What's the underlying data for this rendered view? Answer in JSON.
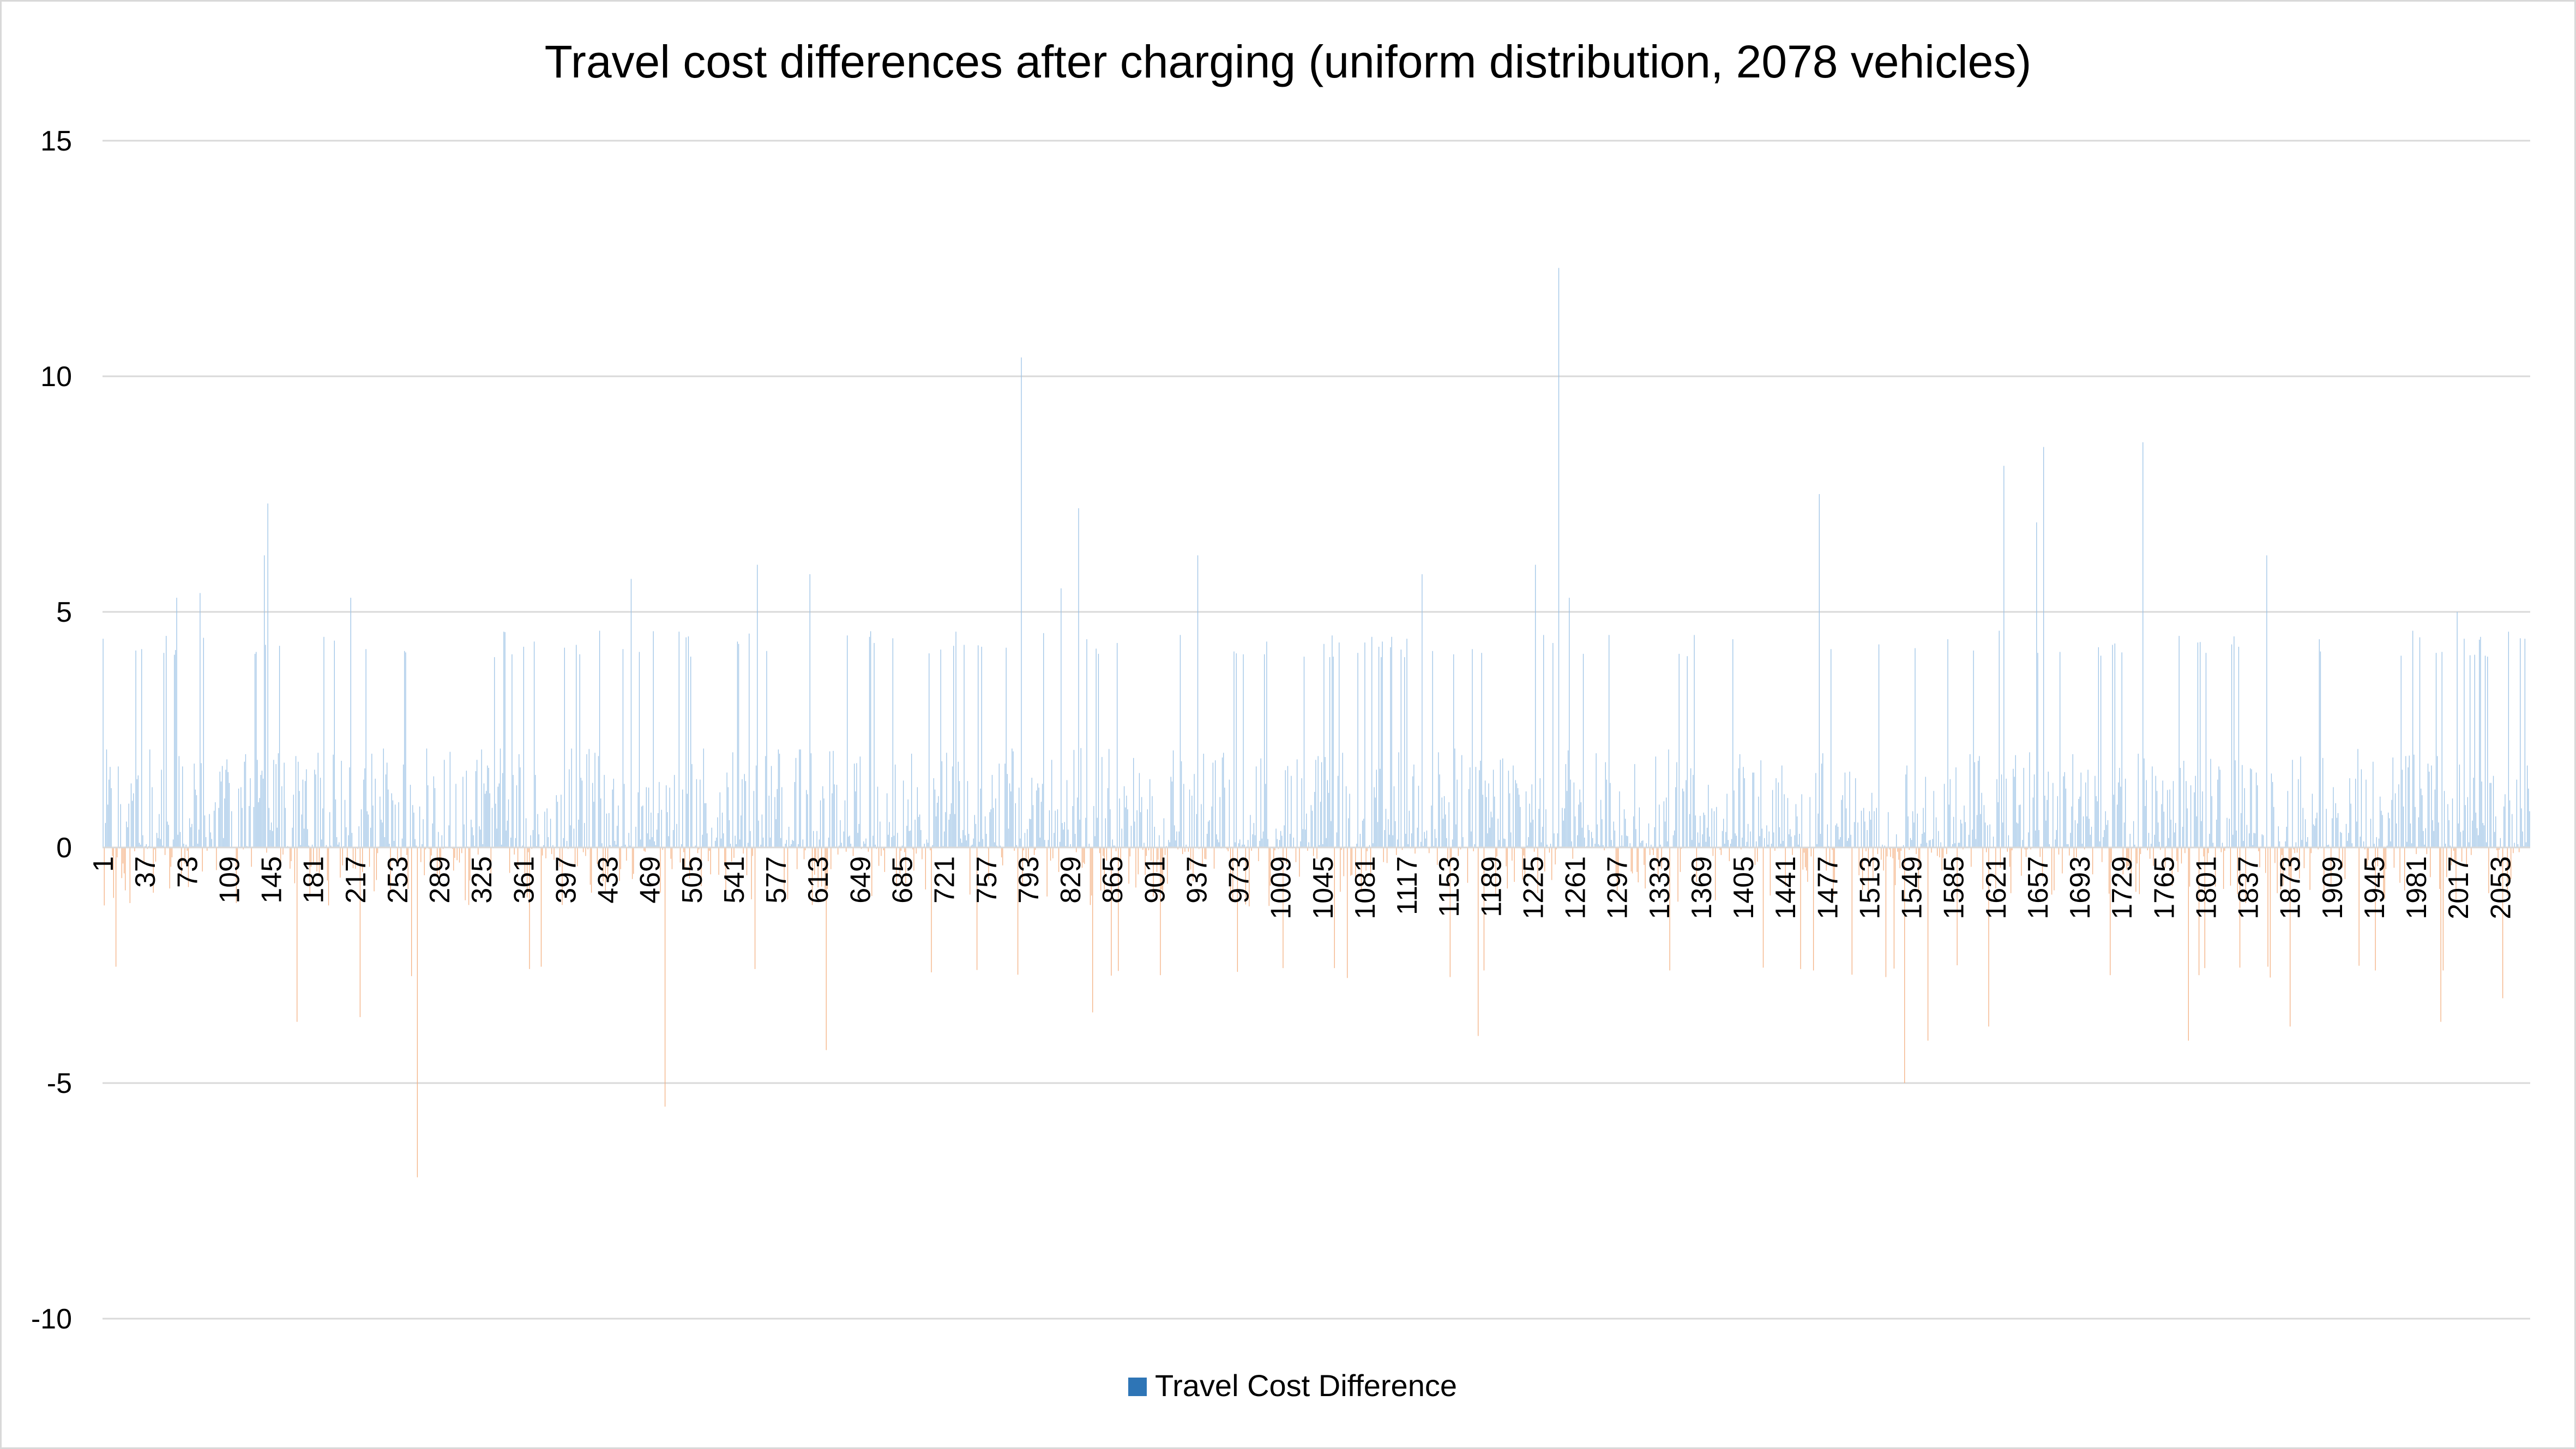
{
  "colors": {
    "positive_bar": "#9dc3e6",
    "negative_bar": "#f4b183",
    "legend_swatch": "#2e75b6",
    "gridline": "#d9d9d9",
    "axis": "#d9d9d9"
  },
  "chart_data": {
    "type": "bar",
    "title": "Travel cost differences after charging (uniform distribution, 2078 vehicles)",
    "xlabel": "",
    "ylabel": "",
    "ylim": [
      -10,
      15
    ],
    "y_ticks": [
      15,
      10,
      5,
      0,
      -5,
      -10
    ],
    "grid": true,
    "legend_position": "bottom",
    "series": [
      {
        "name": "Travel Cost Difference",
        "x_range": [
          1,
          2078
        ],
        "note_values": "2078 bars, one per vehicle; main notable peaks listed below",
        "peaks": [
          {
            "x": 142,
            "y": 7.3
          },
          {
            "x": 139,
            "y": 6.2
          },
          {
            "x": 64,
            "y": 5.3
          },
          {
            "x": 84,
            "y": 5.4
          },
          {
            "x": 213,
            "y": 5.3
          },
          {
            "x": 453,
            "y": 5.7
          },
          {
            "x": 561,
            "y": 6.0
          },
          {
            "x": 606,
            "y": 5.8
          },
          {
            "x": 787,
            "y": 10.4
          },
          {
            "x": 821,
            "y": 5.5
          },
          {
            "x": 836,
            "y": 7.2
          },
          {
            "x": 938,
            "y": 6.2
          },
          {
            "x": 1130,
            "y": 5.8
          },
          {
            "x": 1227,
            "y": 6.0
          },
          {
            "x": 1247,
            "y": 12.3
          },
          {
            "x": 1256,
            "y": 5.3
          },
          {
            "x": 1470,
            "y": 7.5
          },
          {
            "x": 1628,
            "y": 8.1
          },
          {
            "x": 1662,
            "y": 8.5
          },
          {
            "x": 1656,
            "y": 6.9
          },
          {
            "x": 1747,
            "y": 8.6
          },
          {
            "x": 1853,
            "y": 6.2
          },
          {
            "x": 2016,
            "y": 5.0
          },
          {
            "x": 270,
            "y": -7.0
          },
          {
            "x": 482,
            "y": -5.5
          },
          {
            "x": 620,
            "y": -4.3
          },
          {
            "x": 167,
            "y": -3.7
          },
          {
            "x": 221,
            "y": -3.6
          },
          {
            "x": 848,
            "y": -3.5
          },
          {
            "x": 1178,
            "y": -4.0
          },
          {
            "x": 1543,
            "y": -5.0
          },
          {
            "x": 1563,
            "y": -4.1
          },
          {
            "x": 1615,
            "y": -3.8
          },
          {
            "x": 1786,
            "y": -4.1
          },
          {
            "x": 1873,
            "y": -3.8
          },
          {
            "x": 2002,
            "y": -3.7
          },
          {
            "x": 2055,
            "y": -3.2
          }
        ]
      }
    ],
    "x_tick_labels": [
      "1",
      "37",
      "73",
      "109",
      "145",
      "181",
      "217",
      "253",
      "289",
      "325",
      "361",
      "397",
      "433",
      "469",
      "505",
      "541",
      "577",
      "613",
      "649",
      "685",
      "721",
      "757",
      "793",
      "829",
      "865",
      "901",
      "937",
      "973",
      "1009",
      "1045",
      "1081",
      "1117",
      "1153",
      "1189",
      "1225",
      "1261",
      "1297",
      "1333",
      "1369",
      "1405",
      "1441",
      "1477",
      "1513",
      "1549",
      "1585",
      "1621",
      "1657",
      "1693",
      "1729",
      "1765",
      "1801",
      "1837",
      "1873",
      "1909",
      "1945",
      "1981",
      "2017",
      "2053"
    ]
  }
}
